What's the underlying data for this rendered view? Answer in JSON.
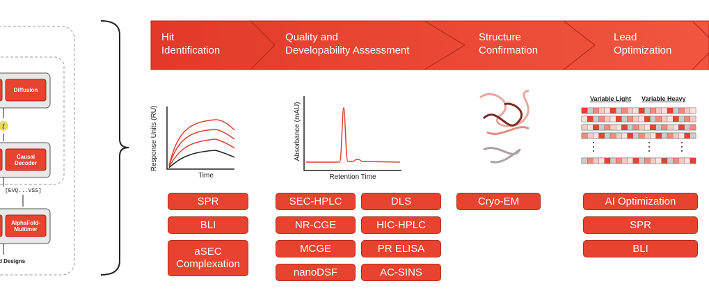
{
  "left": {
    "diffusion": "Diffusion",
    "causal_decoder": "Causal Decoder",
    "sequence": "[EVQ...VSS]",
    "alphafold": "AlphaFold-Multimer",
    "designs": "d Designs"
  },
  "stages": [
    {
      "lines": [
        "Hit",
        "Identification"
      ]
    },
    {
      "lines": [
        "Quality and",
        "Developability Assessment"
      ]
    },
    {
      "lines": [
        "Structure",
        "Confirmation"
      ]
    },
    {
      "lines": [
        "Lead",
        "Optimization"
      ]
    }
  ],
  "plots": {
    "spr_y": "Response Units (RU)",
    "spr_x": "Time",
    "hplc_y": "Absorbance (mAU)",
    "hplc_x": "Retention Time",
    "variable_light": "Variable Light",
    "variable_heavy": "Variable Heavy"
  },
  "assays": [
    {
      "items": [
        "SPR",
        "BLI",
        "aSEC Complexation"
      ]
    },
    {
      "items": [
        "SEC-HPLC",
        "DLS",
        "NR-CGE",
        "HIC-HPLC",
        "MCGE",
        "PR ELISA",
        "nanoDSF",
        "AC-SINS"
      ]
    },
    {
      "items": [
        "Cryo-EM"
      ]
    },
    {
      "items": [
        "AI Optimization",
        "SPR",
        "BLI"
      ]
    }
  ]
}
